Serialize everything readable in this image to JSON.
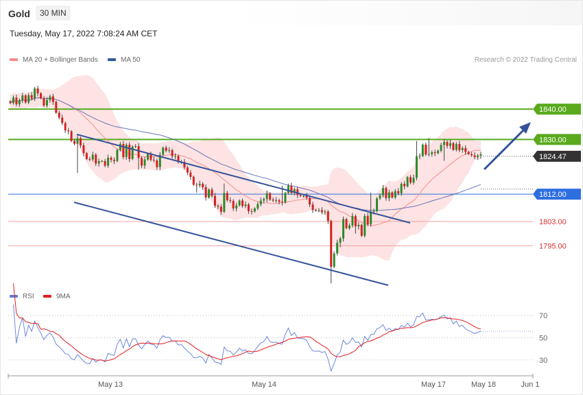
{
  "header": {
    "instrument": "Gold",
    "timeframe": "30 MIN",
    "timestamp": "Tuesday, May 17, 2022 7:08:24 AM CET"
  },
  "legend": {
    "main": [
      {
        "label": "MA 20 + Bollinger Bands",
        "color": "#f58c8c"
      },
      {
        "label": "MA 50",
        "color": "#2e5a9e"
      }
    ],
    "rsi": [
      {
        "label": "RSI",
        "color": "#5b7fd6"
      },
      {
        "label": "9MA",
        "color": "#e31c1c"
      }
    ],
    "research": "Research © 2022 Trading Central"
  },
  "colors": {
    "up": "#2b8a2b",
    "down": "#d42020",
    "resistance": "#5aaa1e",
    "pivot": "#2e6fe0",
    "support": "#f7a1a1",
    "support_text": "#d93030",
    "current": "#333333",
    "band_fill": "#fde3e3",
    "channel": "#33529a"
  },
  "chart_data": [
    {
      "type": "candlestick",
      "ylim": [
        1782,
        1852
      ],
      "x_axis_labels": [
        "May 13",
        "May 14",
        "May 17",
        "May 18",
        "Jun 1"
      ],
      "levels": [
        {
          "value": 1840.0,
          "label": "1840.00",
          "kind": "resistance"
        },
        {
          "value": 1830.0,
          "label": "1830.00",
          "kind": "resistance"
        },
        {
          "value": 1824.47,
          "label": "1824.47",
          "kind": "current"
        },
        {
          "value": 1812.0,
          "label": "1812.00",
          "kind": "pivot"
        },
        {
          "value": 1803.0,
          "label": "1803.00",
          "kind": "support"
        },
        {
          "value": 1795.0,
          "label": "1795.00",
          "kind": "support"
        }
      ],
      "closes": [
        1842.0,
        1843.8,
        1841.6,
        1843.0,
        1844.5,
        1842.2,
        1844.6,
        1843.5,
        1846.8,
        1845.2,
        1843.6,
        1841.2,
        1843.0,
        1844.2,
        1842.4,
        1838.8,
        1837.2,
        1835.4,
        1833.0,
        1832.7,
        1829.5,
        1828.6,
        1830.4,
        1828.1,
        1825.5,
        1823.6,
        1823.4,
        1825.0,
        1822.1,
        1822.9,
        1822.9,
        1821.4,
        1824.0,
        1823.3,
        1822.9,
        1826.6,
        1828.5,
        1824.2,
        1828.3,
        1823.6,
        1827.7,
        1827.8,
        1823.9,
        1821.4,
        1823.4,
        1825.3,
        1823.3,
        1823.1,
        1820.9,
        1825.0,
        1827.3,
        1826.3,
        1826.5,
        1824.5,
        1824.6,
        1822.5,
        1822.6,
        1820.8,
        1819.1,
        1817.7,
        1815.1,
        1814.9,
        1815.4,
        1814.3,
        1810.9,
        1813.5,
        1811.4,
        1808.2,
        1807.9,
        1806.2,
        1812.4,
        1810.0,
        1809.8,
        1807.3,
        1808.3,
        1809.9,
        1808.1,
        1808.6,
        1806.4,
        1806.3,
        1807.3,
        1808.7,
        1809.9,
        1810.4,
        1812.3,
        1810.2,
        1809.9,
        1810.0,
        1809.5,
        1809.3,
        1812.4,
        1814.8,
        1812.4,
        1813.6,
        1811.7,
        1811.4,
        1811.4,
        1810.8,
        1808.6,
        1806.8,
        1806.6,
        1806.7,
        1806.1,
        1806.3,
        1803.2,
        1788.1,
        1792.5,
        1796.0,
        1797.4,
        1803.8,
        1800.8,
        1801.7,
        1804.8,
        1801.4,
        1801.9,
        1798.3,
        1804.8,
        1802.1,
        1806.3,
        1806.4,
        1810.6,
        1811.6,
        1814.0,
        1810.7,
        1812.6,
        1810.9,
        1813.0,
        1812.3,
        1815.4,
        1814.6,
        1817.6,
        1815.8,
        1817.4,
        1824.5,
        1824.6,
        1828.3,
        1825.1,
        1825.2,
        1825.8,
        1825.5,
        1826.3,
        1828.2,
        1829.2,
        1827.9,
        1828.8,
        1826.6,
        1828.5,
        1826.5,
        1827.2,
        1825.9,
        1825.2,
        1824.8,
        1824.2,
        1824.7,
        1825.1
      ],
      "rsi": {
        "ylim": [
          20,
          80
        ],
        "ticks": [
          "70",
          "50",
          "30"
        ]
      }
    }
  ]
}
